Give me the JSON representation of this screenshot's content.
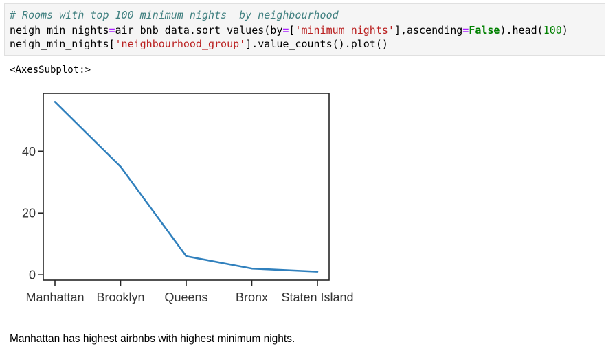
{
  "code_cell": {
    "line1_comment": "# Rooms with top 100 minimum_nights  by neighbourhood",
    "line2": {
      "var": "neigh_min_nights",
      "eq": "=",
      "call_prefix": "air_bnb_data.sort_values(by",
      "eq2": "=",
      "bracket_open": "[",
      "str_arg": "'minimum_nights'",
      "bracket_close_args": "],ascending",
      "eq3": "=",
      "kw_false": "False",
      "tail_prefix": ").head(",
      "num_arg": "100",
      "tail_suffix": ")"
    },
    "line3": {
      "prefix": "neigh_min_nights[",
      "str_arg": "'neighbourhood_group'",
      "suffix": "].value_counts().plot()"
    }
  },
  "output": {
    "repr_label": "<AxesSubplot:>"
  },
  "chart_data": {
    "type": "line",
    "categories": [
      "Manhattan",
      "Brooklyn",
      "Queens",
      "Bronx",
      "Staten Island"
    ],
    "values": [
      56,
      35,
      6,
      2,
      1
    ],
    "ylim": [
      -1.75,
      58.75
    ],
    "yticks": [
      0,
      20,
      40
    ],
    "title": "",
    "xlabel": "",
    "ylabel": "",
    "grid": false,
    "line_color": "#3080bd"
  },
  "markdown": {
    "text": "Manhattan has highest airbnbs with highest minimum nights."
  }
}
